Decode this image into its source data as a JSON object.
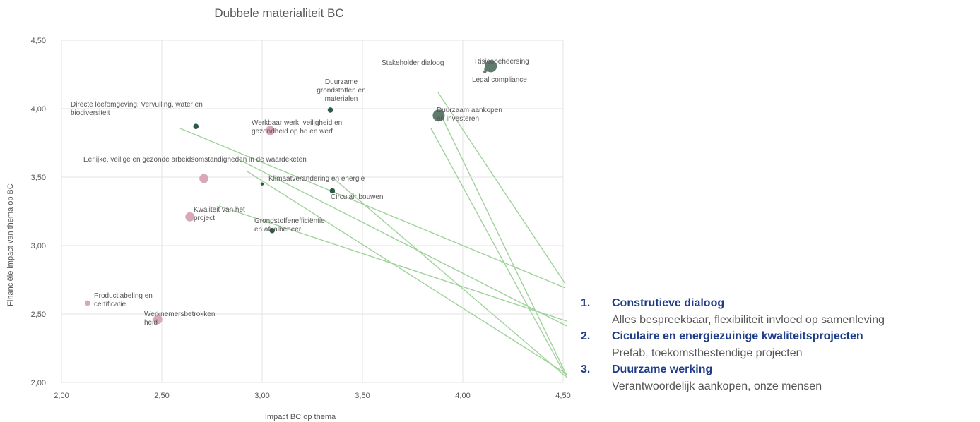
{
  "chart_data": {
    "type": "scatter",
    "title": "Dubbele materialiteit BC",
    "xlabel": "Impact BC op thema",
    "ylabel": "Financiële impact van thema op BC",
    "xlim": [
      2.0,
      4.5
    ],
    "ylim": [
      2.0,
      4.5
    ],
    "xticks": [
      "2,00",
      "2,50",
      "3,00",
      "3,50",
      "4,00",
      "4,50"
    ],
    "yticks": [
      "2,00",
      "2,50",
      "3,00",
      "3,50",
      "4,00",
      "4,50"
    ],
    "grid": true,
    "colors": {
      "pink": "#d9a8b6",
      "green": "#2d5a45",
      "grey_green": "#607a6e",
      "connector": "#9fd29a"
    },
    "points": [
      {
        "label": "Kwaliteit van het project",
        "x": 2.64,
        "y": 3.21,
        "size": "medium",
        "color": "pink",
        "label_lines": [
          "Kwaliteit van het",
          "project"
        ]
      },
      {
        "label": "Eerlijke, veilige en gezonde arbeidsomstandigheden in de waardeketen",
        "x": 2.71,
        "y": 3.49,
        "size": "medium",
        "color": "pink",
        "label_lines": [
          "Eerlijke, veilige en gezonde arbeidsomstandigheden in de waardeketen"
        ]
      },
      {
        "label": "Werkbaar werk: veiligheid en gezondheid op hq en werf",
        "x": 3.04,
        "y": 3.84,
        "size": "medium",
        "color": "pink",
        "label_lines": [
          "Werkbaar werk: veiligheid en",
          "gezondheid op hq en werf"
        ]
      },
      {
        "label": "Productlabeling en certificatie",
        "x": 2.13,
        "y": 2.58,
        "size": "small",
        "color": "pink",
        "label_lines": [
          "Productlabeling en",
          "certificatie"
        ]
      },
      {
        "label": "Werknemersbetrokkenheid",
        "x": 2.48,
        "y": 2.46,
        "size": "medium",
        "color": "pink",
        "label_lines": [
          "Werknemersbetrokken",
          "heid"
        ]
      },
      {
        "label": "Directe leefomgeving: Vervuiling, water en biodiversiteit",
        "x": 2.67,
        "y": 3.87,
        "size": "small",
        "color": "green",
        "label_lines": [
          "Directe leefomgeving: Vervuiling, water en",
          "biodiversiteit"
        ]
      },
      {
        "label": "Duurzame grondstoffen en materialen",
        "x": 3.34,
        "y": 3.99,
        "size": "small",
        "color": "green",
        "label_lines": [
          "Duurzame",
          "grondstoffen en",
          "materialen"
        ]
      },
      {
        "label": "Klimaatverandering en energie",
        "x": 3.0,
        "y": 3.45,
        "size": "tiny",
        "color": "green",
        "label_lines": [
          "Klimaatverandering en energie"
        ]
      },
      {
        "label": "Circulair bouwen",
        "x": 3.35,
        "y": 3.4,
        "size": "small",
        "color": "green",
        "label_lines": [
          "Circulair bouwen"
        ]
      },
      {
        "label": "Grondstoffenefficiëntie en afvalbeheer",
        "x": 3.05,
        "y": 3.11,
        "size": "small",
        "color": "green",
        "label_lines": [
          "Grondstoffenefficiëntie",
          "en afvalbeheer"
        ]
      },
      {
        "label": "Duurzaam aankopen en investeren",
        "x": 3.88,
        "y": 3.95,
        "size": "large",
        "color": "grey_green",
        "label_lines": [
          "Duurzaam aankopen",
          "en investeren"
        ]
      },
      {
        "label": "Stakeholder dialoog",
        "x": 4.12,
        "y": 4.29,
        "size": "small",
        "color": "grey_green",
        "label_lines": [
          "Stakeholder dialoog"
        ]
      },
      {
        "label": "Risicobeheersing",
        "x": 4.14,
        "y": 4.31,
        "size": "large",
        "color": "grey_green",
        "label_lines": [
          "Risicobeheersing"
        ]
      },
      {
        "label": "Legal compliance",
        "x": 4.11,
        "y": 4.27,
        "size": "tiny",
        "color": "grey_green",
        "label_lines": [
          "Legal compliance"
        ]
      }
    ]
  },
  "legend": [
    {
      "number": "1.",
      "heading": "Construtieve dialoog",
      "description": "Alles bespreekbaar, flexibiliteit invloed op samenleving"
    },
    {
      "number": "2.",
      "heading": "Ciculaire en energiezuinige kwaliteitsprojecten",
      "description": "Prefab, toekomstbestendige projecten"
    },
    {
      "number": "3.",
      "heading": "Duurzame werking",
      "description": "Verantwoordelijk aankopen, onze mensen"
    }
  ]
}
